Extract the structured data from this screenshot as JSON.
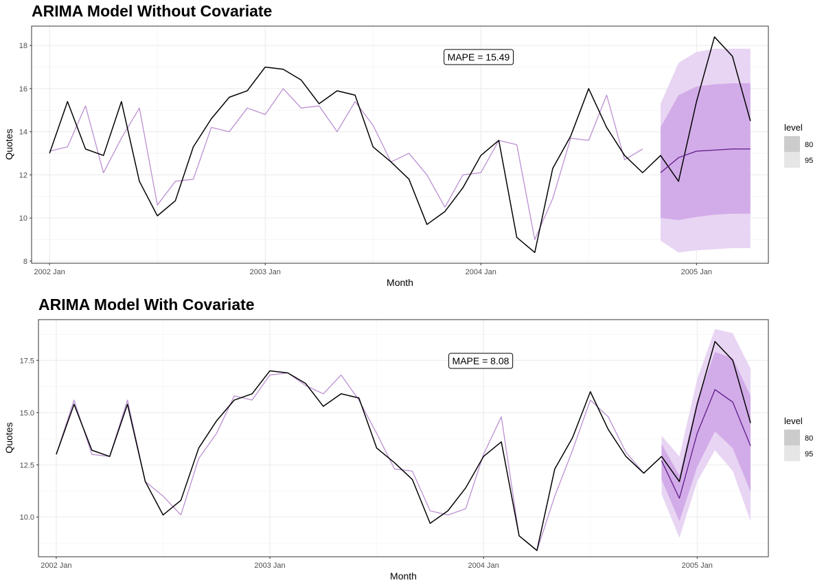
{
  "chart_data": [
    {
      "type": "line",
      "title": "ARIMA Model Without Covariate",
      "xlabel": "Month",
      "ylabel": "Quotes",
      "x_tick_labels": [
        "2002 Jan",
        "2003 Jan",
        "2004 Jan",
        "2005 Jan"
      ],
      "y_ticks": [
        8,
        10,
        12,
        14,
        16,
        18
      ],
      "y_tick_labels": [
        "8",
        "10",
        "12",
        "14",
        "16",
        "18"
      ],
      "ylim": [
        7.9,
        18.9
      ],
      "xlim": [
        "2001-12",
        "2005-05"
      ],
      "grid": true,
      "annotation": "MAPE = 15.49",
      "legend": {
        "title": "level",
        "position": "right",
        "entries": [
          "80",
          "95"
        ],
        "colors": [
          "#cccccc",
          "#e6e6e6"
        ]
      },
      "series": [
        {
          "role": "actual",
          "color": "#000000",
          "x": [
            "2002-01",
            "2002-02",
            "2002-03",
            "2002-04",
            "2002-05",
            "2002-06",
            "2002-07",
            "2002-08",
            "2002-09",
            "2002-10",
            "2002-11",
            "2002-12",
            "2003-01",
            "2003-02",
            "2003-03",
            "2003-04",
            "2003-05",
            "2003-06",
            "2003-07",
            "2003-08",
            "2003-09",
            "2003-10",
            "2003-11",
            "2003-12",
            "2004-01",
            "2004-02",
            "2004-03",
            "2004-04",
            "2004-05",
            "2004-06",
            "2004-07",
            "2004-08",
            "2004-09",
            "2004-10",
            "2004-11",
            "2004-12",
            "2005-01",
            "2005-02",
            "2005-03",
            "2005-04"
          ],
          "values": [
            13.0,
            15.4,
            13.2,
            12.9,
            15.4,
            11.7,
            10.1,
            10.8,
            13.3,
            14.6,
            15.6,
            15.9,
            17.0,
            16.9,
            16.4,
            15.3,
            15.9,
            15.7,
            13.3,
            12.6,
            11.8,
            9.7,
            10.3,
            11.4,
            12.9,
            13.6,
            9.1,
            8.4,
            12.3,
            13.8,
            16.0,
            14.2,
            12.9,
            12.1,
            12.9,
            11.7,
            15.4,
            18.4,
            17.5,
            14.5
          ]
        },
        {
          "role": "fitted",
          "color": "#bb8fd1",
          "x": [
            "2002-01",
            "2002-02",
            "2002-03",
            "2002-04",
            "2002-05",
            "2002-06",
            "2002-07",
            "2002-08",
            "2002-09",
            "2002-10",
            "2002-11",
            "2002-12",
            "2003-01",
            "2003-02",
            "2003-03",
            "2003-04",
            "2003-05",
            "2003-06",
            "2003-07",
            "2003-08",
            "2003-09",
            "2003-10",
            "2003-11",
            "2003-12",
            "2004-01",
            "2004-02",
            "2004-03",
            "2004-04",
            "2004-05",
            "2004-06",
            "2004-07",
            "2004-08",
            "2004-09",
            "2004-10"
          ],
          "values": [
            13.1,
            13.3,
            15.2,
            12.1,
            13.7,
            15.1,
            10.6,
            11.7,
            11.8,
            14.2,
            14.0,
            15.1,
            14.8,
            16.0,
            15.1,
            15.2,
            14.0,
            15.4,
            14.3,
            12.6,
            13.0,
            12.0,
            10.5,
            12.0,
            12.1,
            13.6,
            13.4,
            9.0,
            10.9,
            13.7,
            13.6,
            15.7,
            12.7,
            13.2
          ]
        },
        {
          "role": "forecast",
          "color": "#5e1a8a",
          "x": [
            "2004-11",
            "2004-12",
            "2005-01",
            "2005-02",
            "2005-03",
            "2005-04"
          ],
          "values": [
            12.1,
            12.8,
            13.1,
            13.15,
            13.2,
            13.2
          ]
        }
      ],
      "intervals": {
        "x": [
          "2004-11",
          "2004-12",
          "2005-01",
          "2005-02",
          "2005-03",
          "2005-04"
        ],
        "lo80": [
          10.0,
          9.9,
          10.05,
          10.15,
          10.2,
          10.2
        ],
        "hi80": [
          14.2,
          15.7,
          16.1,
          16.2,
          16.25,
          16.25
        ],
        "lo95": [
          8.95,
          8.4,
          8.5,
          8.55,
          8.6,
          8.6
        ],
        "hi95": [
          15.3,
          17.2,
          17.7,
          17.85,
          17.85,
          17.85
        ],
        "color80": "#d2ace8",
        "color95": "#e8d5f3"
      }
    },
    {
      "type": "line",
      "title": "ARIMA Model With Covariate",
      "xlabel": "Month",
      "ylabel": "Quotes",
      "x_tick_labels": [
        "2002 Jan",
        "2003 Jan",
        "2004 Jan",
        "2005 Jan"
      ],
      "y_ticks": [
        10.0,
        12.5,
        15.0,
        17.5
      ],
      "y_tick_labels": [
        "10.0",
        "12.5",
        "15.0",
        "17.5"
      ],
      "ylim": [
        8.1,
        19.45
      ],
      "xlim": [
        "2001-12",
        "2005-05"
      ],
      "grid": true,
      "annotation": "MAPE = 8.08",
      "legend": {
        "title": "level",
        "position": "right",
        "entries": [
          "80",
          "95"
        ],
        "colors": [
          "#cccccc",
          "#e6e6e6"
        ]
      },
      "series": [
        {
          "role": "actual",
          "color": "#000000",
          "x": [
            "2002-01",
            "2002-02",
            "2002-03",
            "2002-04",
            "2002-05",
            "2002-06",
            "2002-07",
            "2002-08",
            "2002-09",
            "2002-10",
            "2002-11",
            "2002-12",
            "2003-01",
            "2003-02",
            "2003-03",
            "2003-04",
            "2003-05",
            "2003-06",
            "2003-07",
            "2003-08",
            "2003-09",
            "2003-10",
            "2003-11",
            "2003-12",
            "2004-01",
            "2004-02",
            "2004-03",
            "2004-04",
            "2004-05",
            "2004-06",
            "2004-07",
            "2004-08",
            "2004-09",
            "2004-10",
            "2004-11",
            "2004-12",
            "2005-01",
            "2005-02",
            "2005-03",
            "2005-04"
          ],
          "values": [
            13.0,
            15.4,
            13.2,
            12.9,
            15.4,
            11.7,
            10.1,
            10.8,
            13.3,
            14.6,
            15.6,
            15.9,
            17.0,
            16.9,
            16.4,
            15.3,
            15.9,
            15.7,
            13.3,
            12.6,
            11.8,
            9.7,
            10.3,
            11.4,
            12.9,
            13.6,
            9.1,
            8.4,
            12.3,
            13.8,
            16.0,
            14.2,
            12.9,
            12.1,
            12.9,
            11.7,
            15.4,
            18.4,
            17.5,
            14.5
          ]
        },
        {
          "role": "fitted",
          "color": "#bb8fd1",
          "x": [
            "2002-01",
            "2002-02",
            "2002-03",
            "2002-04",
            "2002-05",
            "2002-06",
            "2002-07",
            "2002-08",
            "2002-09",
            "2002-10",
            "2002-11",
            "2002-12",
            "2003-01",
            "2003-02",
            "2003-03",
            "2003-04",
            "2003-05",
            "2003-06",
            "2003-07",
            "2003-08",
            "2003-09",
            "2003-10",
            "2003-11",
            "2003-12",
            "2004-01",
            "2004-02",
            "2004-03",
            "2004-04",
            "2004-05",
            "2004-06",
            "2004-07",
            "2004-08",
            "2004-09",
            "2004-10"
          ],
          "values": [
            13.0,
            15.6,
            13.0,
            12.9,
            15.6,
            11.7,
            11.0,
            10.1,
            12.8,
            14.0,
            15.8,
            15.6,
            16.8,
            16.9,
            16.3,
            15.9,
            16.8,
            15.6,
            14.0,
            12.3,
            12.2,
            10.3,
            10.1,
            10.4,
            13.0,
            14.8,
            9.1,
            8.4,
            11.0,
            13.2,
            15.6,
            14.8,
            13.1,
            12.1
          ]
        },
        {
          "role": "forecast",
          "color": "#5e1a8a",
          "x": [
            "2004-11",
            "2004-12",
            "2005-01",
            "2005-02",
            "2005-03",
            "2005-04"
          ],
          "values": [
            12.7,
            10.9,
            14.0,
            16.1,
            15.5,
            13.4
          ]
        }
      ],
      "intervals": {
        "x": [
          "2004-11",
          "2004-12",
          "2005-01",
          "2005-02",
          "2005-03",
          "2005-04"
        ],
        "lo80": [
          11.8,
          9.8,
          12.4,
          14.1,
          13.3,
          11.2
        ],
        "hi80": [
          13.5,
          12.0,
          15.6,
          17.9,
          17.6,
          15.8
        ],
        "lo95": [
          11.1,
          9.0,
          11.7,
          13.2,
          12.2,
          9.8
        ],
        "hi95": [
          13.9,
          12.9,
          16.6,
          19.0,
          18.8,
          17.1
        ],
        "color80": "#d2ace8",
        "color95": "#e8d5f3"
      }
    }
  ]
}
